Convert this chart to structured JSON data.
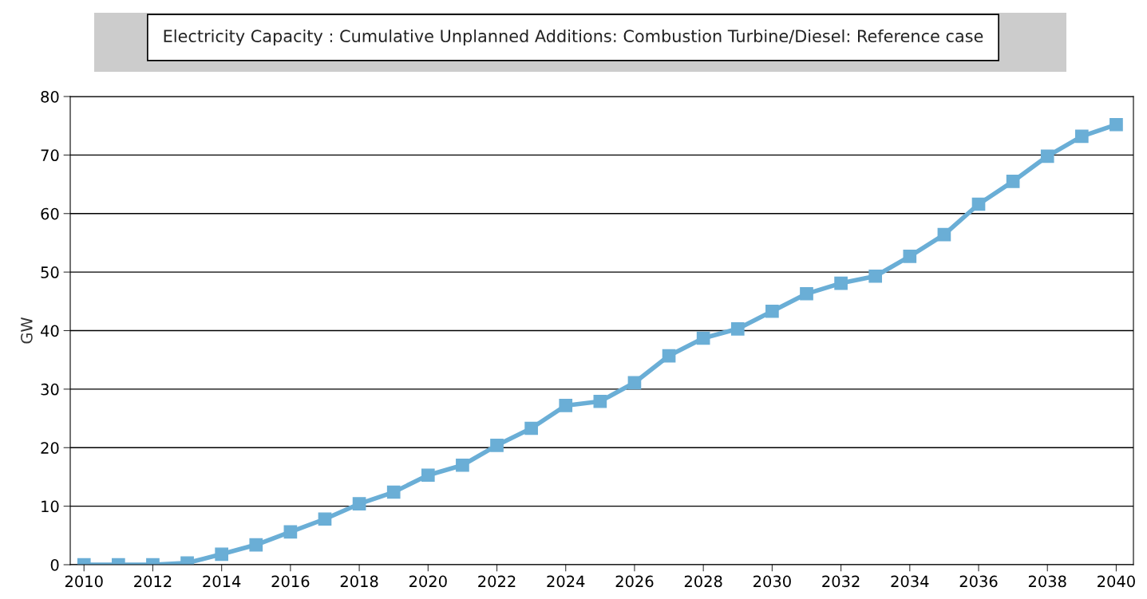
{
  "chart_data": {
    "type": "line",
    "title": "Electricity Capacity : Cumulative Unplanned Additions: Combustion Turbine/Diesel: Reference case",
    "ylabel": "GW",
    "x": [
      2010,
      2011,
      2012,
      2013,
      2014,
      2015,
      2016,
      2017,
      2018,
      2019,
      2020,
      2021,
      2022,
      2023,
      2024,
      2025,
      2026,
      2027,
      2028,
      2029,
      2030,
      2031,
      2032,
      2033,
      2034,
      2035,
      2036,
      2037,
      2038,
      2039,
      2040
    ],
    "series": [
      {
        "color": "#6aaed6",
        "values": [
          0,
          0,
          0,
          0.3,
          1.8,
          3.4,
          5.6,
          7.8,
          10.4,
          12.4,
          15.3,
          17.0,
          20.4,
          23.3,
          27.2,
          27.9,
          31.1,
          35.7,
          38.7,
          40.3,
          43.3,
          46.3,
          48.1,
          49.3,
          52.7,
          56.4,
          61.6,
          65.5,
          69.8,
          73.2,
          75.2
        ]
      }
    ],
    "xlim": [
      2009.6,
      2040.5
    ],
    "xticks": [
      2010,
      2012,
      2014,
      2016,
      2018,
      2020,
      2022,
      2024,
      2026,
      2028,
      2030,
      2032,
      2034,
      2036,
      2038,
      2040
    ],
    "ylim": [
      0,
      80
    ],
    "yticks": [
      0,
      10,
      20,
      30,
      40,
      50,
      60,
      70,
      80
    ],
    "grid": "y",
    "legend": false,
    "marker": "square",
    "line_style": "solid"
  }
}
